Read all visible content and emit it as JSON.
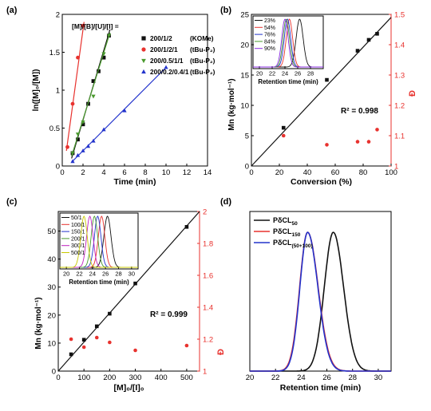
{
  "chart_data": [
    {
      "type": "scatter",
      "panel_label": "(a)",
      "xlabel": "Time (min)",
      "ylabel": "ln([M]₀/[M])",
      "xlim": [
        0,
        14
      ],
      "ylim": [
        0,
        2.0
      ],
      "xticks": [
        0,
        2,
        4,
        6,
        8,
        10,
        12,
        14
      ],
      "yticks": [
        0,
        0.5,
        1.0,
        1.5,
        2.0
      ],
      "legend_header": "[M]/[B]/[U]/[I] =",
      "legend_placement": "top-right",
      "series": [
        {
          "name": "200/1/2",
          "catalyst": "(KOMe)",
          "color": "#111111",
          "marker": "square",
          "x": [
            1.0,
            1.5,
            2.0,
            2.5,
            3.0,
            3.5,
            4.0,
            4.5
          ],
          "y": [
            0.17,
            0.35,
            0.55,
            0.82,
            1.12,
            1.25,
            1.43,
            1.72
          ],
          "fit": [
            [
              0.9,
              0.1
            ],
            [
              4.6,
              1.8
            ]
          ]
        },
        {
          "name": "200/1/2/1",
          "catalyst": "(tBu-P₂)",
          "color": "#e8322e",
          "marker": "circle",
          "x": [
            0.5,
            1.0,
            1.5,
            2.0
          ],
          "y": [
            0.25,
            0.82,
            1.43,
            1.85
          ],
          "fit": [
            [
              0.4,
              0.2
            ],
            [
              2.1,
              1.9
            ]
          ]
        },
        {
          "name": "200/0.5/1/1",
          "catalyst": "(tBu-P₂)",
          "color": "#4a9a2e",
          "marker": "triangle-down",
          "x": [
            1.0,
            1.5,
            2.0,
            3.0,
            4.0,
            4.5
          ],
          "y": [
            0.17,
            0.42,
            0.58,
            0.92,
            1.48,
            1.72
          ],
          "fit": [
            [
              0.9,
              0.13
            ],
            [
              4.6,
              1.76
            ]
          ]
        },
        {
          "name": "200/0.2/0.4/1",
          "catalyst": "(tBu-P₂)",
          "color": "#2233cc",
          "marker": "triangle-up",
          "x": [
            1.0,
            1.5,
            2.0,
            2.5,
            3.0,
            4.0,
            6.0,
            10.0
          ],
          "y": [
            0.06,
            0.14,
            0.2,
            0.26,
            0.33,
            0.48,
            0.73,
            1.3
          ],
          "fit": [
            [
              0.9,
              0.05
            ],
            [
              10.0,
              1.3
            ]
          ]
        }
      ]
    },
    {
      "type": "scatter",
      "panel_label": "(b)",
      "xlabel": "Conversion (%)",
      "ylabel": "Mn (kg·mol⁻¹)",
      "y2label": "Đ",
      "xlim": [
        0,
        100
      ],
      "ylim": [
        0,
        25
      ],
      "y2lim": [
        1.0,
        1.5
      ],
      "xticks": [
        0,
        20,
        40,
        60,
        80,
        100
      ],
      "yticks": [
        0,
        5,
        10,
        15,
        20,
        25
      ],
      "y2ticks": [
        1.0,
        1.1,
        1.2,
        1.3,
        1.4,
        1.5
      ],
      "annotation": "R² = 0.998",
      "series": [
        {
          "name": "Mn",
          "color": "#111111",
          "marker": "square",
          "axis": "left",
          "x": [
            23,
            54,
            76,
            84,
            90
          ],
          "y": [
            6.3,
            14.2,
            19.0,
            20.8,
            21.8
          ],
          "fit": [
            [
              0,
              0
            ],
            [
              100,
              24.5
            ]
          ]
        },
        {
          "name": "Đ",
          "color": "#e8322e",
          "marker": "circle",
          "axis": "right",
          "x": [
            23,
            54,
            76,
            84,
            90
          ],
          "y": [
            1.1,
            1.07,
            1.08,
            1.08,
            1.12
          ]
        }
      ],
      "inset": {
        "xlabel": "Retention time (min)",
        "xlim": [
          19,
          30
        ],
        "xticks": [
          20,
          22,
          24,
          26,
          28
        ],
        "xtick_labels": [
          "20",
          "22",
          "24",
          "26",
          "28"
        ],
        "legend": [
          {
            "name": "23%",
            "color": "#111111",
            "center": 26.3,
            "sigma": 0.55
          },
          {
            "name": "54%",
            "color": "#e8322e",
            "center": 24.7,
            "sigma": 0.5
          },
          {
            "name": "76%",
            "color": "#2233cc",
            "center": 24.4,
            "sigma": 0.5
          },
          {
            "name": "84%",
            "color": "#4a9a2e",
            "center": 24.2,
            "sigma": 0.5
          },
          {
            "name": "90%",
            "color": "#8a2be2",
            "center": 24.0,
            "sigma": 0.5
          }
        ]
      }
    },
    {
      "type": "scatter",
      "panel_label": "(c)",
      "xlabel": "[M]₀/[I]₀",
      "ylabel": "Mn (kg·mol⁻¹)",
      "y2label": "Đ",
      "xlim": [
        0,
        550
      ],
      "ylim": [
        0,
        57
      ],
      "y2lim": [
        1.0,
        2.0
      ],
      "xticks": [
        0,
        100,
        200,
        300,
        400,
        500
      ],
      "yticks": [
        0,
        10,
        20,
        30,
        40,
        50
      ],
      "y2ticks": [
        1.0,
        1.2,
        1.4,
        1.6,
        1.8,
        2.0
      ],
      "annotation": "R² = 0.999",
      "series": [
        {
          "name": "Mn",
          "color": "#111111",
          "marker": "square",
          "axis": "left",
          "x": [
            50,
            100,
            150,
            200,
            300,
            500
          ],
          "y": [
            6.0,
            11.2,
            16.0,
            20.5,
            31.3,
            51.5
          ],
          "fit": [
            [
              0,
              0
            ],
            [
              550,
              57
            ]
          ]
        },
        {
          "name": "Đ",
          "color": "#e8322e",
          "marker": "circle",
          "axis": "right",
          "x": [
            50,
            100,
            150,
            200,
            300,
            500
          ],
          "y": [
            1.2,
            1.15,
            1.21,
            1.18,
            1.13,
            1.16
          ]
        }
      ],
      "inset": {
        "xlabel": "Retention time (min)",
        "xlim": [
          19,
          31
        ],
        "xticks": [
          20,
          22,
          24,
          26,
          28,
          30
        ],
        "xtick_labels": [
          "20",
          "22",
          "24",
          "26",
          "28",
          "30"
        ],
        "legend": [
          {
            "name": "50/1",
            "color": "#111111",
            "center": 26.3,
            "sigma": 0.55
          },
          {
            "name": "100/1",
            "color": "#e8322e",
            "center": 25.4,
            "sigma": 0.5
          },
          {
            "name": "150/1",
            "color": "#2233cc",
            "center": 24.8,
            "sigma": 0.5
          },
          {
            "name": "200/1",
            "color": "#4a9a2e",
            "center": 24.3,
            "sigma": 0.5
          },
          {
            "name": "300/1",
            "color": "#c020c0",
            "center": 23.6,
            "sigma": 0.5
          },
          {
            "name": "500/1",
            "color": "#c8c800",
            "center": 22.7,
            "sigma": 0.5
          }
        ]
      }
    },
    {
      "type": "line",
      "panel_label": "(d)",
      "xlabel": "Retention time (min)",
      "xlim": [
        20,
        31
      ],
      "ylim": [
        0,
        1.15
      ],
      "xticks": [
        20,
        22,
        24,
        26,
        28,
        30
      ],
      "series": [
        {
          "name": "PδCL",
          "subscript": "50",
          "color": "#111111",
          "center": 26.5,
          "sigma_left": 0.7,
          "sigma_right": 0.8
        },
        {
          "name": "PδCL",
          "subscript": "150",
          "color": "#e8322e",
          "center": 24.5,
          "sigma_left": 0.62,
          "sigma_right": 0.82
        },
        {
          "name": "PδCL",
          "subscript": "(50+100)",
          "color": "#2233cc",
          "center": 24.5,
          "sigma_left": 0.6,
          "sigma_right": 0.8
        }
      ]
    }
  ]
}
